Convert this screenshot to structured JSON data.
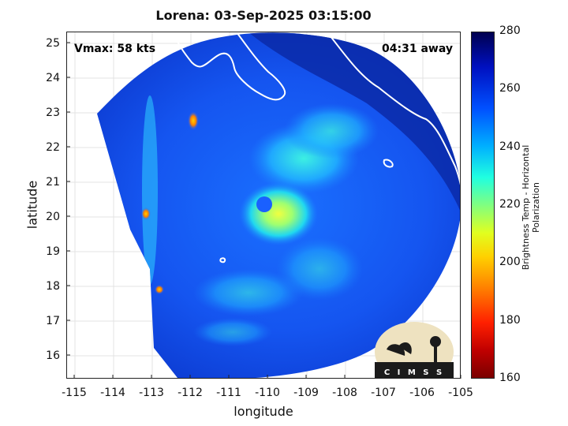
{
  "title": "Lorena: 03-Sep-2025 03:15:00",
  "annotations": {
    "vmax": "Vmax: 58 kts",
    "time_away": "04:31 away"
  },
  "axes": {
    "xlabel": "longitude",
    "ylabel": "latitude",
    "xticks": [
      "-115",
      "-114",
      "-113",
      "-112",
      "-111",
      "-110",
      "-109",
      "-108",
      "-107",
      "-106",
      "-105"
    ],
    "yticks": [
      "16",
      "17",
      "18",
      "19",
      "20",
      "21",
      "22",
      "23",
      "24",
      "25"
    ]
  },
  "colorbar": {
    "label": "Brightness Temp - Horizontal Polarization",
    "ticks": [
      "280",
      "260",
      "240",
      "220",
      "200",
      "180",
      "160"
    ]
  },
  "logo": {
    "text": "CIMSS"
  }
}
